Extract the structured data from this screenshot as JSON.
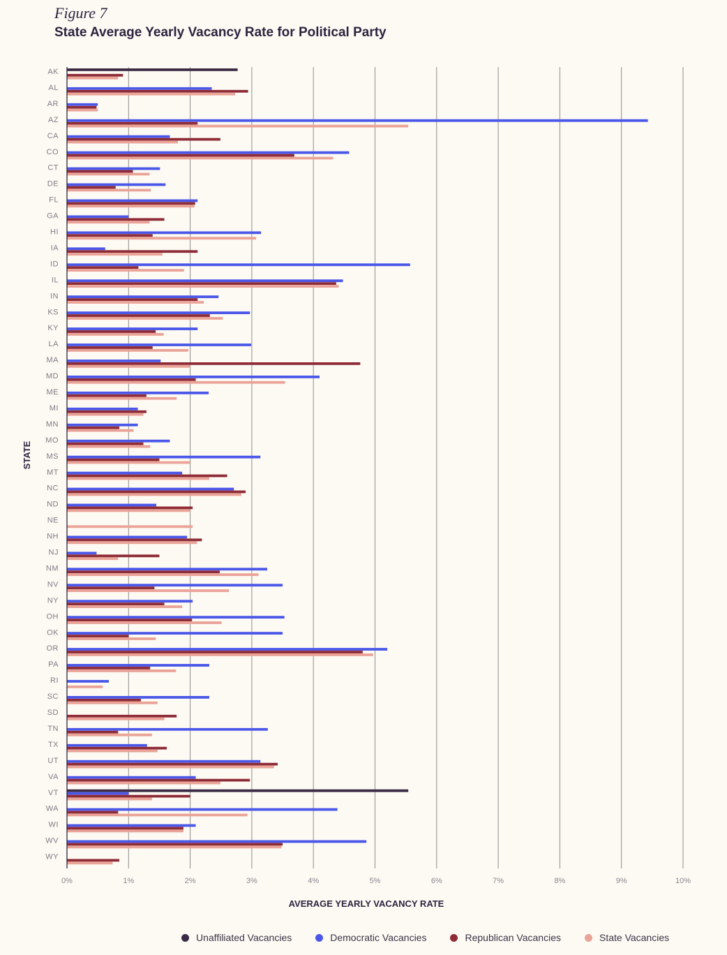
{
  "figure_label": "Figure 7",
  "chart_data": {
    "type": "bar",
    "orientation": "horizontal",
    "title": "State Average Yearly Vacancy Rate for Political Party",
    "xlabel": "AVERAGE YEARLY VACANCY RATE",
    "ylabel": "STATE",
    "xlim": [
      0,
      10
    ],
    "xticks": [
      "0%",
      "1%",
      "2%",
      "3%",
      "4%",
      "5%",
      "6%",
      "7%",
      "8%",
      "9%",
      "10%"
    ],
    "grid": "vertical",
    "legend_position": "bottom-right",
    "categories": [
      "AK",
      "AL",
      "AR",
      "AZ",
      "CA",
      "CO",
      "CT",
      "DE",
      "FL",
      "GA",
      "HI",
      "IA",
      "ID",
      "IL",
      "IN",
      "KS",
      "KY",
      "LA",
      "MA",
      "MD",
      "ME",
      "MI",
      "MN",
      "MO",
      "MS",
      "MT",
      "NC",
      "ND",
      "NE",
      "NH",
      "NJ",
      "NM",
      "NV",
      "NY",
      "OH",
      "OK",
      "OR",
      "PA",
      "RI",
      "SC",
      "SD",
      "TN",
      "TX",
      "UT",
      "VA",
      "VT",
      "WA",
      "WI",
      "WV",
      "WY"
    ],
    "series": [
      {
        "name": "Unaffiliated Vacancies",
        "color": "#3b2a45",
        "values": [
          2.77,
          null,
          null,
          null,
          null,
          null,
          null,
          null,
          null,
          null,
          null,
          null,
          null,
          null,
          null,
          null,
          null,
          null,
          null,
          null,
          null,
          null,
          null,
          null,
          null,
          null,
          null,
          null,
          null,
          null,
          null,
          null,
          null,
          null,
          null,
          null,
          null,
          null,
          null,
          null,
          null,
          null,
          null,
          null,
          null,
          5.54,
          null,
          null,
          null,
          null
        ]
      },
      {
        "name": "Democratic Vacancies",
        "color": "#4a57e8",
        "values": [
          null,
          2.35,
          0.5,
          9.43,
          1.67,
          4.58,
          1.51,
          1.6,
          2.12,
          1.0,
          3.15,
          0.62,
          5.57,
          4.48,
          2.46,
          2.97,
          2.12,
          2.99,
          1.52,
          4.1,
          2.3,
          1.15,
          1.15,
          1.67,
          3.14,
          1.87,
          2.71,
          1.45,
          null,
          1.95,
          0.48,
          3.25,
          3.5,
          2.04,
          3.53,
          3.5,
          5.2,
          2.31,
          0.68,
          2.31,
          null,
          3.26,
          1.3,
          3.14,
          2.09,
          1.0,
          4.39,
          2.09,
          4.86,
          null
        ]
      },
      {
        "name": "Republican Vacancies",
        "color": "#8e2b36",
        "values": [
          0.91,
          2.94,
          0.48,
          2.12,
          2.49,
          3.69,
          1.07,
          0.79,
          2.08,
          1.58,
          1.39,
          2.12,
          1.16,
          4.37,
          2.12,
          2.32,
          1.44,
          1.39,
          4.76,
          2.09,
          1.29,
          1.29,
          0.85,
          1.24,
          1.5,
          2.6,
          2.9,
          2.04,
          null,
          2.19,
          1.5,
          2.48,
          1.42,
          1.58,
          2.03,
          1.0,
          4.8,
          1.35,
          null,
          1.2,
          1.78,
          0.83,
          1.62,
          3.42,
          2.97,
          2.0,
          0.83,
          1.89,
          3.5,
          0.85
        ]
      },
      {
        "name": "State Vacancies",
        "color": "#eaa397",
        "values": [
          0.83,
          2.73,
          0.5,
          5.54,
          1.8,
          4.32,
          1.34,
          1.36,
          2.07,
          1.34,
          3.07,
          1.55,
          1.9,
          4.41,
          2.22,
          2.53,
          1.57,
          1.97,
          2.0,
          3.54,
          1.78,
          1.24,
          1.08,
          1.35,
          2.0,
          2.31,
          2.83,
          2.0,
          2.04,
          2.11,
          0.83,
          3.11,
          2.63,
          1.87,
          2.51,
          1.44,
          4.97,
          1.77,
          0.58,
          1.47,
          1.58,
          1.38,
          1.47,
          3.36,
          2.49,
          1.38,
          2.93,
          1.89,
          3.48,
          0.74
        ]
      }
    ]
  }
}
